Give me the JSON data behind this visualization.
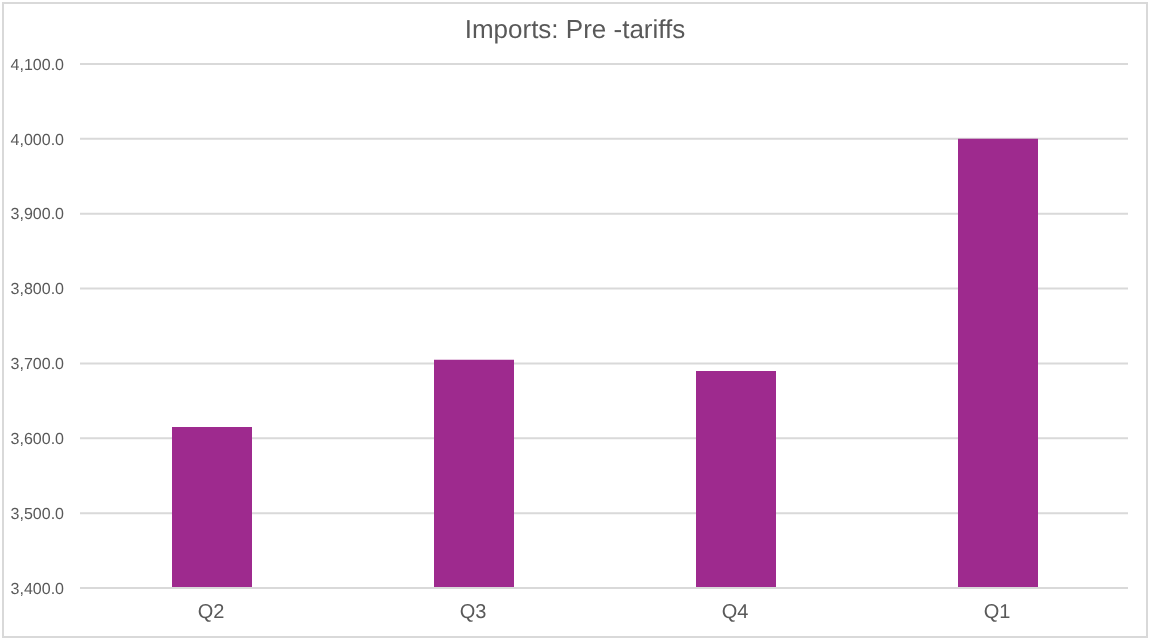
{
  "chart_data": {
    "type": "bar",
    "title": "Imports: Pre -tariffs",
    "categories": [
      "Q2",
      "Q3",
      "Q4",
      "Q1"
    ],
    "values": [
      3615,
      3705,
      3690,
      4000
    ],
    "color": "#9e2a8e",
    "ylim": [
      3400,
      4100
    ],
    "yticks": [
      {
        "value": 3400,
        "label": "3,400.0"
      },
      {
        "value": 3500,
        "label": "3,500.0"
      },
      {
        "value": 3600,
        "label": "3,600.0"
      },
      {
        "value": 3700,
        "label": "3,700.0"
      },
      {
        "value": 3800,
        "label": "3,800.0"
      },
      {
        "value": 3900,
        "label": "3,900.0"
      },
      {
        "value": 4000,
        "label": "4,000.0"
      },
      {
        "value": 4100,
        "label": "4,100.0"
      }
    ],
    "grid": "y"
  }
}
